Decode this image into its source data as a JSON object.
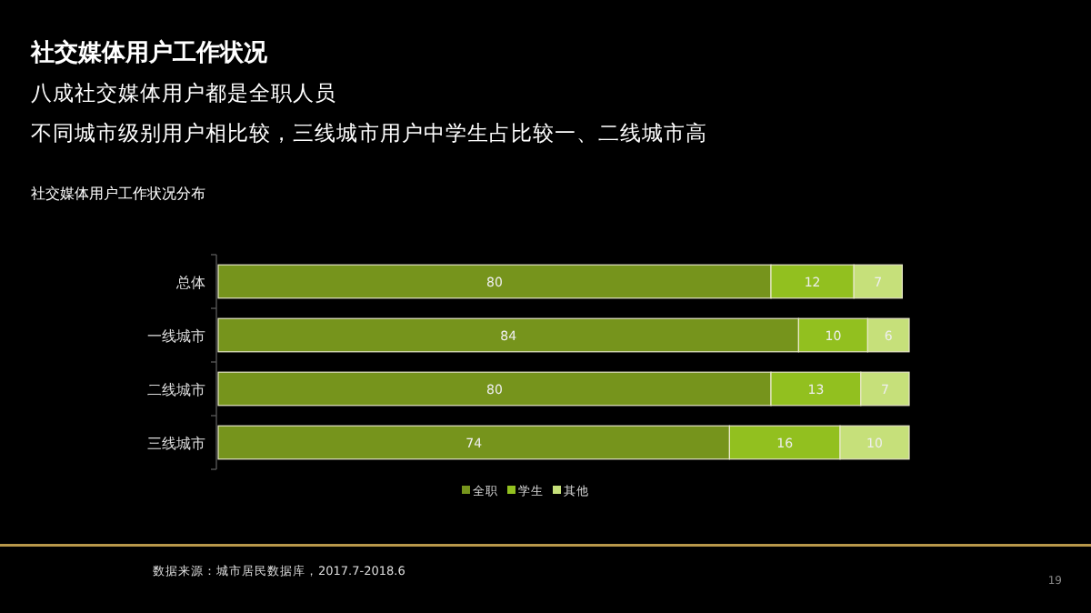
{
  "chart_data": {
    "type": "bar",
    "orientation": "horizontal",
    "stacked": true,
    "data_labels": true,
    "legend": "bottom",
    "title": "社交媒体用户工作状况",
    "subtitle": "八成社交媒体用户都是全职人员",
    "annotations": [
      "不同城市级别用户相比较，三线城市用户中学生占比较一、二线城市高",
      "社交媒体用户工作状况分布",
      "数据来源：城市居民数据库，2017.7-2018.6",
      "19"
    ],
    "categories": [
      "总体",
      "一线城市",
      "二线城市",
      "三线城市"
    ],
    "series": [
      {
        "name": "全职",
        "color": "#76941c",
        "values": [
          80,
          84,
          80,
          74
        ]
      },
      {
        "name": "学生",
        "color": "#92c01f",
        "values": [
          12,
          10,
          13,
          16
        ]
      },
      {
        "name": "其他",
        "color": "#c6e07a",
        "values": [
          7,
          6,
          7,
          10
        ]
      }
    ]
  }
}
